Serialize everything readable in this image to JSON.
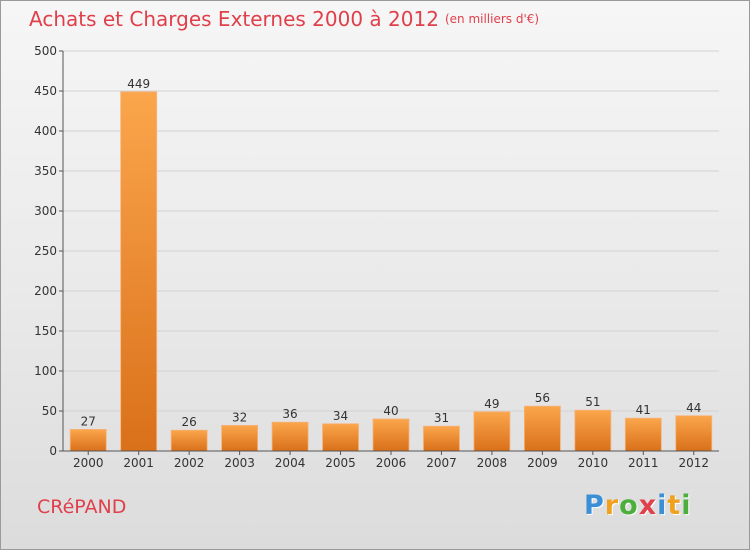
{
  "header": {
    "title": "Achats et Charges Externes 2000 à 2012",
    "unit": "(en milliers d'€)"
  },
  "footer": {
    "commune": "CRéPAND",
    "brand_letters": [
      {
        "ch": "P",
        "color": "#3b8fd6"
      },
      {
        "ch": "r",
        "color": "#f0a21f"
      },
      {
        "ch": "o",
        "color": "#4caf3c"
      },
      {
        "ch": "x",
        "color": "#e0404b"
      },
      {
        "ch": "i",
        "color": "#3b8fd6"
      },
      {
        "ch": "t",
        "color": "#f0a21f"
      },
      {
        "ch": "i",
        "color": "#4caf3c"
      }
    ]
  },
  "chart_data": {
    "type": "bar",
    "title": "Achats et Charges Externes 2000 à 2012",
    "categories": [
      "2000",
      "2001",
      "2002",
      "2003",
      "2004",
      "2005",
      "2006",
      "2007",
      "2008",
      "2009",
      "2010",
      "2011",
      "2012"
    ],
    "values": [
      27,
      449,
      26,
      32,
      36,
      34,
      40,
      31,
      49,
      56,
      51,
      41,
      44
    ],
    "ylim": [
      0,
      500
    ],
    "yticks": [
      0,
      50,
      100,
      150,
      200,
      250,
      300,
      350,
      400,
      450,
      500
    ],
    "grid": true,
    "bar_color": "#f0852a"
  }
}
